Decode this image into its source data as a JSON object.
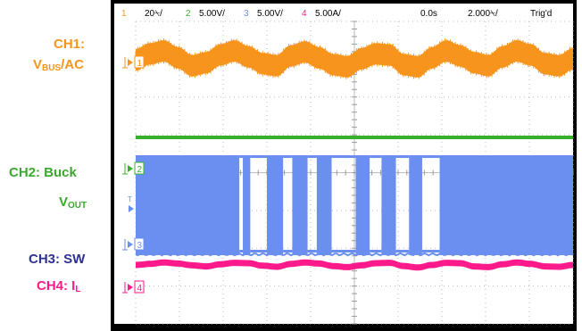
{
  "labels": {
    "ch1_line1": "CH1:",
    "ch1_line2_main": "V",
    "ch1_line2_sub": "BUS",
    "ch1_line2_tail": "/AC",
    "ch2_line1": "CH2: Buck",
    "ch2_line2_main": "V",
    "ch2_line2_sub": "OUT",
    "ch3_line1": "CH3: SW",
    "ch4_line1_main": "CH4: I",
    "ch4_line1_sub": "L"
  },
  "header": {
    "ch1_num": "1",
    "ch1_scale": "20⍀/",
    "ch2_num": "2",
    "ch2_scale": "5.00V/",
    "ch3_num": "3",
    "ch3_scale": "5.00V/",
    "ch4_num": "4",
    "ch4_scale": "5.00A/",
    "time_pos": "0.0s",
    "time_scale": "2.000⍀/",
    "trigger_status": "Trig'd"
  },
  "markers": {
    "ch1": "1",
    "ch2": "2",
    "ch3": "3",
    "ch4": "4"
  },
  "colors": {
    "ch1": "#f7941d",
    "ch2": "#39b02c",
    "ch3": "#6b8ff0",
    "ch4": "#ff1a8c",
    "label_ch1": "#f7941d",
    "label_ch2": "#39a82c",
    "label_ch3": "#2e3192",
    "label_ch4": "#ff1a8c",
    "screen_bg": "#ffffff",
    "grid": "#bbbbbb",
    "bezel": "#000000"
  },
  "chart_data": {
    "type": "line",
    "grid": "10 x 8 divisions, dotted",
    "series": [
      {
        "name": "CH1",
        "description_hidden": true,
        "values": [
          0.0,
          0.6,
          0.9,
          0.2,
          -0.6,
          -0.3,
          0.5,
          0.9,
          0.3,
          -0.4,
          -0.6,
          0.4,
          0.8,
          0.2,
          -0.5,
          -0.7,
          0.1,
          0.6,
          0.5,
          -0.5,
          -0.7,
          0.2,
          0.9,
          0.4,
          -0.3,
          -0.6,
          0.3,
          0.9,
          0.5,
          -0.4,
          -0.6,
          0.1
        ]
      },
      {
        "name": "CH2",
        "values": [
          0,
          0,
          0,
          0,
          0,
          0,
          0,
          0,
          0,
          0
        ]
      },
      {
        "name": "CH3",
        "segments": [
          [
            0.0,
            0.237,
            1
          ],
          [
            0.237,
            0.245,
            0
          ],
          [
            0.245,
            0.262,
            1
          ],
          [
            0.262,
            0.3,
            0
          ],
          [
            0.3,
            0.337,
            1
          ],
          [
            0.337,
            0.358,
            0
          ],
          [
            0.358,
            0.393,
            1
          ],
          [
            0.393,
            0.414,
            0
          ],
          [
            0.414,
            0.448,
            1
          ],
          [
            0.448,
            0.503,
            0
          ],
          [
            0.503,
            0.535,
            1
          ],
          [
            0.535,
            0.562,
            0
          ],
          [
            0.562,
            0.595,
            1
          ],
          [
            0.595,
            0.625,
            0
          ],
          [
            0.625,
            0.655,
            1
          ],
          [
            0.655,
            0.695,
            0
          ],
          [
            0.695,
            1.0,
            1
          ]
        ]
      },
      {
        "name": "CH4",
        "values": [
          0.0,
          0.3,
          0.7,
          0.4,
          -0.1,
          -0.4,
          0.2,
          0.6,
          0.5,
          -0.2,
          -0.5,
          0.3,
          0.7,
          0.4,
          -0.3,
          -0.6,
          -0.1,
          0.5,
          0.6,
          -0.3,
          -0.7,
          0.0,
          0.6,
          0.5,
          -0.4,
          -0.6,
          0.2,
          0.7,
          0.3,
          -0.4,
          -0.5,
          0.0
        ]
      }
    ]
  }
}
